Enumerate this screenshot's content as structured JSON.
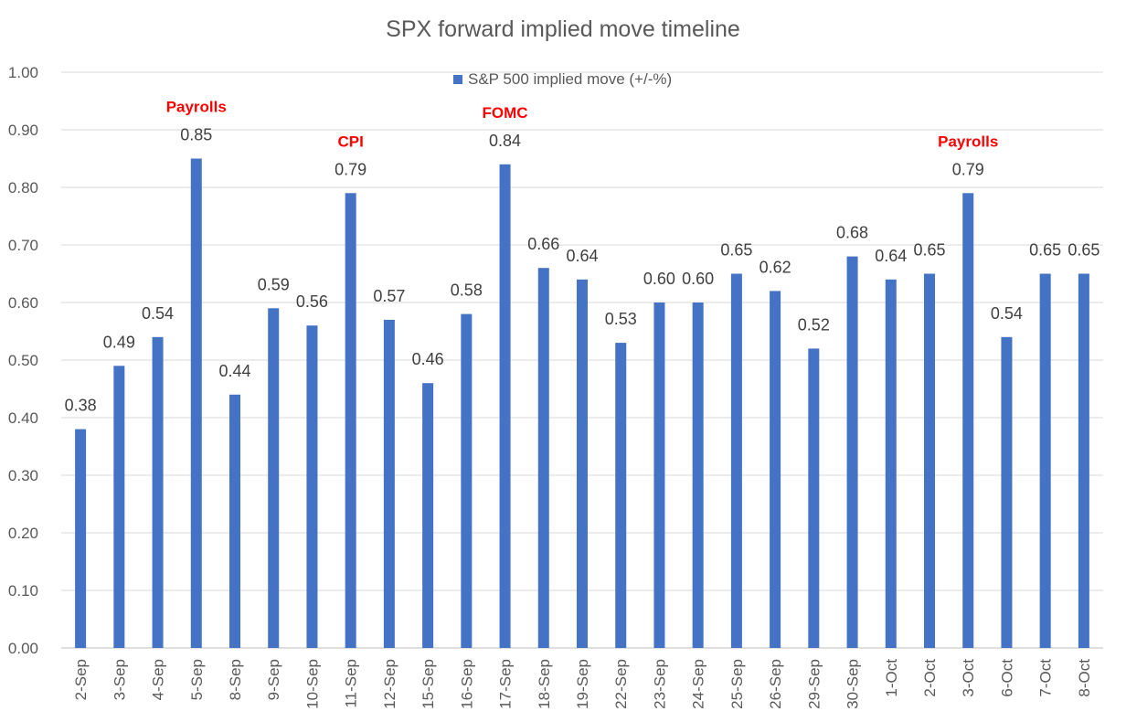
{
  "chart_data": {
    "type": "bar",
    "title": "SPX forward implied move timeline",
    "xlabel": "",
    "ylabel": "",
    "ylim": [
      0,
      1.0
    ],
    "yticks": [
      "0.00",
      "0.10",
      "0.20",
      "0.30",
      "0.40",
      "0.50",
      "0.60",
      "0.70",
      "0.80",
      "0.90",
      "1.00"
    ],
    "grid": true,
    "legend_position": "top",
    "categories": [
      "2-Sep",
      "3-Sep",
      "4-Sep",
      "5-Sep",
      "8-Sep",
      "9-Sep",
      "10-Sep",
      "11-Sep",
      "12-Sep",
      "15-Sep",
      "16-Sep",
      "17-Sep",
      "18-Sep",
      "19-Sep",
      "22-Sep",
      "23-Sep",
      "24-Sep",
      "25-Sep",
      "26-Sep",
      "29-Sep",
      "30-Sep",
      "1-Oct",
      "2-Oct",
      "3-Oct",
      "6-Oct",
      "7-Oct",
      "8-Oct"
    ],
    "series": [
      {
        "name": "S&P 500 implied move (+/-%)",
        "color": "#4472c4",
        "values": [
          0.38,
          0.49,
          0.54,
          0.85,
          0.44,
          0.59,
          0.56,
          0.79,
          0.57,
          0.46,
          0.58,
          0.84,
          0.66,
          0.64,
          0.53,
          0.6,
          0.6,
          0.65,
          0.62,
          0.52,
          0.68,
          0.64,
          0.65,
          0.79,
          0.54,
          0.65,
          0.65
        ],
        "labels": [
          "0.38",
          "0.49",
          "0.54",
          "0.85",
          "0.44",
          "0.59",
          "0.56",
          "0.79",
          "0.57",
          "0.46",
          "0.58",
          "0.84",
          "0.66",
          "0.64",
          "0.53",
          "0.60",
          "0.60",
          "0.65",
          "0.62",
          "0.52",
          "0.68",
          "0.64",
          "0.65",
          "0.79",
          "0.54",
          "0.65",
          "0.65"
        ]
      }
    ],
    "annotations": [
      {
        "category": "5-Sep",
        "text": "Payrolls"
      },
      {
        "category": "11-Sep",
        "text": "CPI"
      },
      {
        "category": "17-Sep",
        "text": "FOMC"
      },
      {
        "category": "3-Oct",
        "text": "Payrolls"
      }
    ]
  }
}
